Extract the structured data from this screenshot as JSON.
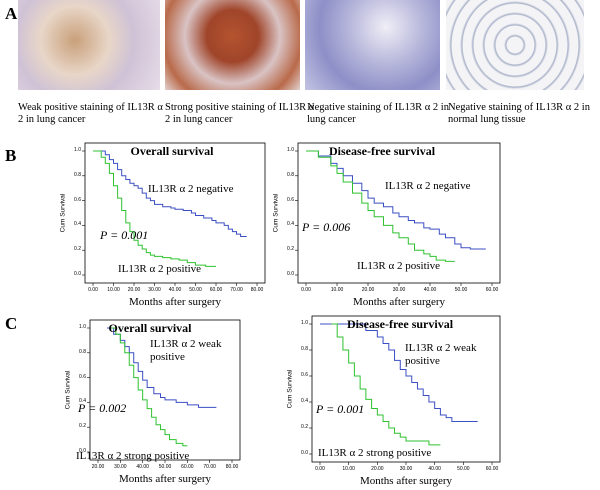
{
  "panel_labels": [
    "A",
    "B",
    "C"
  ],
  "images": [
    {
      "caption": "Weak positive staining of IL13R α 2 in lung cancer"
    },
    {
      "caption": "Strong positive staining of IL13R α 2 in lung cancer"
    },
    {
      "caption": "Negative staining of IL13R α 2 in lung cancer"
    },
    {
      "caption": "Negative staining of IL13R α 2 in normal lung tissue"
    }
  ],
  "chart_data": [
    {
      "type": "step",
      "title": "Overall survival",
      "xlabel": "Months after surgery",
      "ylabel": "Cum Survival",
      "annotation": "P = 0.001",
      "xlim": [
        0,
        80
      ],
      "ylim": [
        0,
        1
      ],
      "xticks": [
        {
          "value": 0,
          "label": "0.00"
        },
        {
          "value": 10,
          "label": "10.00"
        },
        {
          "value": 20,
          "label": "20.00"
        },
        {
          "value": 30,
          "label": "30.00"
        },
        {
          "value": 40,
          "label": "40.00"
        },
        {
          "value": 50,
          "label": "50.00"
        },
        {
          "value": 60,
          "label": "60.00"
        },
        {
          "value": 70,
          "label": "70.00"
        },
        {
          "value": 80,
          "label": "80.00"
        }
      ],
      "yticks": [
        {
          "value": 0,
          "label": "0.0"
        },
        {
          "value": 0.2,
          "label": "0.2"
        },
        {
          "value": 0.4,
          "label": "0.4"
        },
        {
          "value": 0.6,
          "label": "0.6"
        },
        {
          "value": 0.8,
          "label": "0.8"
        },
        {
          "value": 1,
          "label": "1.0"
        }
      ],
      "series": [
        {
          "name": "IL13R α 2 negative",
          "color": "#3b4fc4",
          "x": [
            0,
            6,
            8,
            10,
            12,
            14,
            16,
            18,
            20,
            22,
            24,
            26,
            28,
            30,
            34,
            38,
            40,
            44,
            48,
            50,
            54,
            58,
            60,
            64,
            66,
            68,
            70,
            72,
            75
          ],
          "values": [
            1,
            0.97,
            0.93,
            0.9,
            0.85,
            0.8,
            0.77,
            0.74,
            0.72,
            0.7,
            0.66,
            0.62,
            0.6,
            0.57,
            0.55,
            0.54,
            0.53,
            0.52,
            0.5,
            0.48,
            0.46,
            0.44,
            0.42,
            0.4,
            0.37,
            0.35,
            0.33,
            0.31,
            0.31
          ]
        },
        {
          "name": "IL13R α 2 positive",
          "color": "#2fc22f",
          "x": [
            0,
            4,
            6,
            8,
            10,
            12,
            14,
            16,
            18,
            20,
            22,
            24,
            26,
            28,
            30,
            34,
            38,
            42,
            46,
            50,
            55,
            60
          ],
          "values": [
            1,
            0.95,
            0.9,
            0.82,
            0.72,
            0.62,
            0.52,
            0.42,
            0.35,
            0.28,
            0.24,
            0.21,
            0.18,
            0.16,
            0.15,
            0.14,
            0.13,
            0.12,
            0.1,
            0.08,
            0.07,
            0.07
          ]
        }
      ]
    },
    {
      "type": "step",
      "title": "Disease-free survival",
      "xlabel": "Months after surgery",
      "ylabel": "Cum Survival",
      "annotation": "P = 0.006",
      "xlim": [
        0,
        60
      ],
      "ylim": [
        0,
        1
      ],
      "xticks": [
        {
          "value": 0,
          "label": "0.00"
        },
        {
          "value": 10,
          "label": "10.00"
        },
        {
          "value": 20,
          "label": "20.00"
        },
        {
          "value": 30,
          "label": "30.00"
        },
        {
          "value": 40,
          "label": "40.00"
        },
        {
          "value": 50,
          "label": "50.00"
        },
        {
          "value": 60,
          "label": "60.00"
        }
      ],
      "yticks": [
        {
          "value": 0,
          "label": "0.0"
        },
        {
          "value": 0.2,
          "label": "0.2"
        },
        {
          "value": 0.4,
          "label": "0.4"
        },
        {
          "value": 0.6,
          "label": "0.6"
        },
        {
          "value": 0.8,
          "label": "0.8"
        },
        {
          "value": 1,
          "label": "1.0"
        }
      ],
      "series": [
        {
          "name": "IL13R α 2 negative",
          "color": "#3b4fc4",
          "x": [
            0,
            4,
            8,
            10,
            12,
            15,
            18,
            20,
            22,
            25,
            28,
            30,
            33,
            35,
            38,
            40,
            43,
            45,
            48,
            50,
            53,
            55,
            58
          ],
          "values": [
            1,
            0.96,
            0.9,
            0.86,
            0.8,
            0.74,
            0.68,
            0.62,
            0.58,
            0.55,
            0.5,
            0.47,
            0.44,
            0.42,
            0.38,
            0.37,
            0.33,
            0.3,
            0.25,
            0.22,
            0.21,
            0.21,
            0.21
          ]
        },
        {
          "name": "IL13R α 2 positive",
          "color": "#2fc22f",
          "x": [
            0,
            4,
            8,
            10,
            12,
            15,
            18,
            20,
            22,
            25,
            28,
            30,
            33,
            35,
            38,
            40,
            42,
            45,
            48
          ],
          "values": [
            1,
            0.95,
            0.88,
            0.82,
            0.75,
            0.66,
            0.58,
            0.52,
            0.47,
            0.4,
            0.34,
            0.3,
            0.25,
            0.2,
            0.17,
            0.15,
            0.12,
            0.11,
            0.11
          ]
        }
      ]
    },
    {
      "type": "step",
      "title": "Overall survival",
      "xlabel": "Months after surgery",
      "ylabel": "Cum Survival",
      "annotation": "P = 0.002",
      "xlim": [
        20,
        80
      ],
      "ylim": [
        0,
        1
      ],
      "xticks": [
        {
          "value": 20,
          "label": "20.00"
        },
        {
          "value": 30,
          "label": "30.00"
        },
        {
          "value": 40,
          "label": "40.00"
        },
        {
          "value": 50,
          "label": "50.00"
        },
        {
          "value": 60,
          "label": "60.00"
        },
        {
          "value": 70,
          "label": "70.00"
        },
        {
          "value": 80,
          "label": "80.00"
        }
      ],
      "yticks": [
        {
          "value": 0,
          "label": "0.0"
        },
        {
          "value": 0.2,
          "label": "0.2"
        },
        {
          "value": 0.4,
          "label": "0.4"
        },
        {
          "value": 0.6,
          "label": "0.6"
        },
        {
          "value": 0.8,
          "label": "0.8"
        },
        {
          "value": 1,
          "label": "1.0"
        }
      ],
      "series": [
        {
          "name": "IL13R α 2 weak positive",
          "color": "#3b4fc4",
          "x": [
            24,
            27,
            30,
            32,
            34,
            36,
            38,
            40,
            42,
            45,
            48,
            50,
            55,
            60,
            65,
            70,
            73
          ],
          "values": [
            1,
            0.95,
            0.9,
            0.85,
            0.8,
            0.72,
            0.65,
            0.58,
            0.52,
            0.47,
            0.44,
            0.42,
            0.4,
            0.38,
            0.36,
            0.36,
            0.36
          ]
        },
        {
          "name": "IL13R α 2 strong positive",
          "color": "#2fc22f",
          "x": [
            26,
            28,
            30,
            32,
            34,
            36,
            38,
            40,
            42,
            44,
            46,
            48,
            50,
            52,
            55,
            58,
            60
          ],
          "values": [
            1,
            0.95,
            0.88,
            0.8,
            0.7,
            0.6,
            0.5,
            0.42,
            0.35,
            0.28,
            0.22,
            0.18,
            0.14,
            0.1,
            0.07,
            0.05,
            0.05
          ]
        }
      ]
    },
    {
      "type": "step",
      "title": "Disease-free survival",
      "xlabel": "Months after surgery",
      "ylabel": "Cum Survival",
      "annotation": "P = 0.001",
      "xlim": [
        0,
        60
      ],
      "ylim": [
        0,
        1
      ],
      "xticks": [
        {
          "value": 0,
          "label": "0.00"
        },
        {
          "value": 10,
          "label": "10.00"
        },
        {
          "value": 20,
          "label": "20.00"
        },
        {
          "value": 30,
          "label": "30.00"
        },
        {
          "value": 40,
          "label": "40.00"
        },
        {
          "value": 50,
          "label": "50.00"
        },
        {
          "value": 60,
          "label": "60.00"
        }
      ],
      "yticks": [
        {
          "value": 0,
          "label": "0.0"
        },
        {
          "value": 0.2,
          "label": "0.2"
        },
        {
          "value": 0.4,
          "label": "0.4"
        },
        {
          "value": 0.6,
          "label": "0.6"
        },
        {
          "value": 0.8,
          "label": "0.8"
        },
        {
          "value": 1,
          "label": "1.0"
        }
      ],
      "series": [
        {
          "name": "IL13R α 2 weak positive",
          "color": "#3b4fc4",
          "x": [
            0,
            12,
            16,
            20,
            22,
            24,
            26,
            28,
            30,
            32,
            34,
            36,
            38,
            40,
            42,
            44,
            46,
            50,
            55
          ],
          "values": [
            1,
            1,
            0.95,
            0.9,
            0.85,
            0.8,
            0.72,
            0.65,
            0.6,
            0.55,
            0.5,
            0.45,
            0.4,
            0.35,
            0.3,
            0.28,
            0.25,
            0.25,
            0.25
          ]
        },
        {
          "name": "IL13R α 2 strong positive",
          "color": "#2fc22f",
          "x": [
            4,
            6,
            8,
            10,
            12,
            14,
            16,
            18,
            20,
            22,
            24,
            26,
            28,
            30,
            34,
            38,
            42
          ],
          "values": [
            1,
            0.9,
            0.8,
            0.7,
            0.6,
            0.5,
            0.42,
            0.35,
            0.3,
            0.25,
            0.2,
            0.16,
            0.13,
            0.1,
            0.1,
            0.07,
            0.07
          ]
        }
      ]
    }
  ]
}
